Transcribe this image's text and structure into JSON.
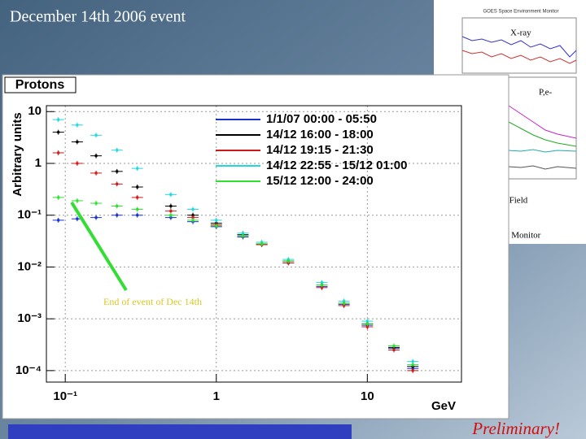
{
  "slide": {
    "title": "December 14th 2006  event",
    "preliminary": "Preliminary!",
    "goes": {
      "title": "GOES Space Environment Monitor",
      "labels": [
        "X-ray",
        "P,e-",
        "c Field",
        "n Monitor"
      ]
    }
  },
  "chart_data": {
    "type": "scatter",
    "title": "Protons",
    "y_label": "Arbitrary units",
    "x_label": "GeV",
    "annotation": "End of event of Dec 14th",
    "xscale": "log",
    "yscale": "log",
    "grid": true,
    "xlim": [
      0.075,
      42
    ],
    "ylim": [
      6e-05,
      13
    ],
    "xticks": [
      {
        "value": 0.1,
        "label": "10⁻¹"
      },
      1,
      10
    ],
    "yticks": [
      10,
      1,
      {
        "value": 0.1,
        "label": "10⁻¹"
      },
      {
        "value": 0.01,
        "label": "10⁻²"
      },
      {
        "value": 0.001,
        "label": "10⁻³"
      },
      {
        "value": 0.0001,
        "label": "10⁻⁴"
      }
    ],
    "x": [
      0.09,
      0.12,
      0.16,
      0.22,
      0.3,
      0.5,
      0.7,
      1,
      1.5,
      2,
      3,
      5,
      7,
      10,
      15,
      20
    ],
    "series": [
      {
        "name": "1/1/07 00:00 - 05:50",
        "color": "#1a2fd0",
        "values": [
          0.08,
          0.085,
          0.09,
          0.1,
          0.1,
          0.09,
          0.075,
          0.06,
          0.038,
          0.027,
          0.012,
          0.0042,
          0.0019,
          0.00075,
          0.00027,
          0.00011
        ]
      },
      {
        "name": "14/12 16:00 - 18:00",
        "color": "#000000",
        "values": [
          4,
          2.6,
          1.4,
          0.7,
          0.35,
          0.15,
          0.1,
          0.07,
          0.042,
          0.028,
          0.013,
          0.0045,
          0.002,
          0.0008,
          0.00028,
          0.00012
        ]
      },
      {
        "name": "14/12 19:15 - 21:30",
        "color": "#d01818",
        "values": [
          1.6,
          1.0,
          0.65,
          0.4,
          0.22,
          0.12,
          0.09,
          0.065,
          0.04,
          0.027,
          0.012,
          0.004,
          0.0018,
          0.0007,
          0.00025,
          0.0001
        ]
      },
      {
        "name": "14/12 22:55 - 15/12 01:00",
        "color": "#20d8e0",
        "values": [
          7,
          5.5,
          3.5,
          1.8,
          0.8,
          0.25,
          0.13,
          0.08,
          0.045,
          0.03,
          0.014,
          0.005,
          0.0022,
          0.0009,
          0.0003,
          0.00015
        ]
      },
      {
        "name": "15/12 12:00 - 24:00",
        "color": "#30e030",
        "values": [
          0.22,
          0.19,
          0.17,
          0.15,
          0.13,
          0.1,
          0.08,
          0.062,
          0.04,
          0.028,
          0.013,
          0.0045,
          0.002,
          0.0008,
          0.0003,
          0.00013
        ]
      }
    ]
  }
}
